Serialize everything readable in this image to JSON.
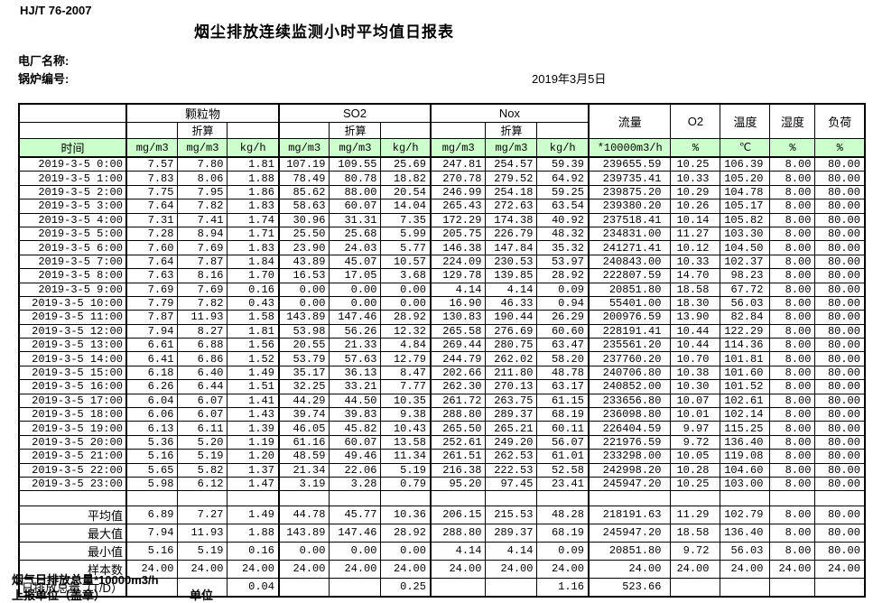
{
  "page": {
    "standard": "HJ/T  76-2007",
    "title": "烟尘排放连续监测小时平均值日报表",
    "plant_label": "电厂名称:",
    "boiler_label": "锅炉编号:",
    "date": "2019年3月5日",
    "footer_note": "烟气日排放总量*10000m3/h",
    "report_unit_label": "上报单位（盖章）",
    "unit_label": "单位"
  },
  "colors": {
    "header_green": "#ccffcc",
    "border": "#000000"
  },
  "table": {
    "header": {
      "time": "时间",
      "pm": "颗粒物",
      "so2": "SO2",
      "nox": "Nox",
      "converted": "折算",
      "flow": "流量",
      "o2": "O2",
      "temperature": "温度",
      "humidity": "湿度",
      "load": "负荷",
      "units": [
        "mg/m3",
        "mg/m3",
        "kg/h",
        "mg/m3",
        "mg/m3",
        "kg/h",
        "mg/m3",
        "mg/m3",
        "kg/h",
        "*10000m3/h",
        "%",
        "℃",
        "%",
        "%"
      ]
    },
    "rows": [
      {
        "time": "2019-3-5 0:00",
        "values": [
          "7.57",
          "7.80",
          "1.81",
          "107.19",
          "109.55",
          "25.69",
          "247.81",
          "254.57",
          "59.39",
          "239655.59",
          "10.25",
          "106.39",
          "8.00",
          "80.00"
        ]
      },
      {
        "time": "2019-3-5 1:00",
        "values": [
          "7.83",
          "8.06",
          "1.88",
          "78.49",
          "80.78",
          "18.82",
          "270.78",
          "279.52",
          "64.92",
          "239735.41",
          "10.33",
          "105.20",
          "8.00",
          "80.00"
        ]
      },
      {
        "time": "2019-3-5 2:00",
        "values": [
          "7.75",
          "7.95",
          "1.86",
          "85.62",
          "88.00",
          "20.54",
          "246.99",
          "254.18",
          "59.25",
          "239875.20",
          "10.29",
          "104.78",
          "8.00",
          "80.00"
        ]
      },
      {
        "time": "2019-3-5 3:00",
        "values": [
          "7.64",
          "7.82",
          "1.83",
          "58.63",
          "60.07",
          "14.04",
          "265.43",
          "272.63",
          "63.54",
          "239380.20",
          "10.26",
          "105.17",
          "8.00",
          "80.00"
        ]
      },
      {
        "time": "2019-3-5 4:00",
        "values": [
          "7.31",
          "7.41",
          "1.74",
          "30.96",
          "31.31",
          "7.35",
          "172.29",
          "174.38",
          "40.92",
          "237518.41",
          "10.14",
          "105.82",
          "8.00",
          "80.00"
        ]
      },
      {
        "time": "2019-3-5 5:00",
        "values": [
          "7.28",
          "8.94",
          "1.71",
          "25.50",
          "25.68",
          "5.99",
          "205.75",
          "226.79",
          "48.32",
          "234831.00",
          "11.27",
          "103.30",
          "8.00",
          "80.00"
        ]
      },
      {
        "time": "2019-3-5 6:00",
        "values": [
          "7.60",
          "7.69",
          "1.83",
          "23.90",
          "24.03",
          "5.77",
          "146.38",
          "147.84",
          "35.32",
          "241271.41",
          "10.12",
          "104.50",
          "8.00",
          "80.00"
        ]
      },
      {
        "time": "2019-3-5 7:00",
        "values": [
          "7.64",
          "7.87",
          "1.84",
          "43.89",
          "45.07",
          "10.57",
          "224.09",
          "230.53",
          "53.97",
          "240843.00",
          "10.33",
          "102.37",
          "8.00",
          "80.00"
        ]
      },
      {
        "time": "2019-3-5 8:00",
        "values": [
          "7.63",
          "8.16",
          "1.70",
          "16.53",
          "17.05",
          "3.68",
          "129.78",
          "139.85",
          "28.92",
          "222807.59",
          "14.70",
          "98.23",
          "8.00",
          "80.00"
        ]
      },
      {
        "time": "2019-3-5 9:00",
        "values": [
          "7.69",
          "7.69",
          "0.16",
          "0.00",
          "0.00",
          "0.00",
          "4.14",
          "4.14",
          "0.09",
          "20851.80",
          "18.58",
          "67.72",
          "8.00",
          "80.00"
        ]
      },
      {
        "time": "2019-3-5 10:00",
        "values": [
          "7.79",
          "7.82",
          "0.43",
          "0.00",
          "0.00",
          "0.00",
          "16.90",
          "46.33",
          "0.94",
          "55401.00",
          "18.30",
          "56.03",
          "8.00",
          "80.00"
        ]
      },
      {
        "time": "2019-3-5 11:00",
        "values": [
          "7.87",
          "11.93",
          "1.58",
          "143.89",
          "147.46",
          "28.92",
          "130.83",
          "190.44",
          "26.29",
          "200976.59",
          "13.90",
          "82.84",
          "8.00",
          "80.00"
        ]
      },
      {
        "time": "2019-3-5 12:00",
        "values": [
          "7.94",
          "8.27",
          "1.81",
          "53.98",
          "56.26",
          "12.32",
          "265.58",
          "276.69",
          "60.60",
          "228191.41",
          "10.44",
          "122.29",
          "8.00",
          "80.00"
        ]
      },
      {
        "time": "2019-3-5 13:00",
        "values": [
          "6.61",
          "6.88",
          "1.56",
          "20.55",
          "21.33",
          "4.84",
          "269.44",
          "280.75",
          "63.47",
          "235561.20",
          "10.44",
          "114.36",
          "8.00",
          "80.00"
        ]
      },
      {
        "time": "2019-3-5 14:00",
        "values": [
          "6.41",
          "6.86",
          "1.52",
          "53.79",
          "57.63",
          "12.79",
          "244.79",
          "262.02",
          "58.20",
          "237760.20",
          "10.70",
          "101.81",
          "8.00",
          "80.00"
        ]
      },
      {
        "time": "2019-3-5 15:00",
        "values": [
          "6.18",
          "6.40",
          "1.49",
          "35.17",
          "36.13",
          "8.47",
          "202.66",
          "211.80",
          "48.78",
          "240706.80",
          "10.38",
          "101.60",
          "8.00",
          "80.00"
        ]
      },
      {
        "time": "2019-3-5 16:00",
        "values": [
          "6.26",
          "6.44",
          "1.51",
          "32.25",
          "33.21",
          "7.77",
          "262.30",
          "270.13",
          "63.17",
          "240852.00",
          "10.30",
          "101.52",
          "8.00",
          "80.00"
        ]
      },
      {
        "time": "2019-3-5 17:00",
        "values": [
          "6.04",
          "6.07",
          "1.41",
          "44.29",
          "44.50",
          "10.35",
          "261.72",
          "263.75",
          "61.15",
          "233656.80",
          "10.07",
          "102.61",
          "8.00",
          "80.00"
        ]
      },
      {
        "time": "2019-3-5 18:00",
        "values": [
          "6.06",
          "6.07",
          "1.43",
          "39.74",
          "39.83",
          "9.38",
          "288.80",
          "289.37",
          "68.19",
          "236098.80",
          "10.01",
          "102.14",
          "8.00",
          "80.00"
        ]
      },
      {
        "time": "2019-3-5 19:00",
        "values": [
          "6.13",
          "6.11",
          "1.39",
          "46.05",
          "45.82",
          "10.43",
          "265.50",
          "265.21",
          "60.11",
          "226404.59",
          "9.97",
          "115.25",
          "8.00",
          "80.00"
        ]
      },
      {
        "time": "2019-3-5 20:00",
        "values": [
          "5.36",
          "5.20",
          "1.19",
          "61.16",
          "60.07",
          "13.58",
          "252.61",
          "249.20",
          "56.07",
          "221976.59",
          "9.72",
          "136.40",
          "8.00",
          "80.00"
        ]
      },
      {
        "time": "2019-3-5 21:00",
        "values": [
          "5.16",
          "5.19",
          "1.20",
          "48.59",
          "49.46",
          "11.34",
          "261.51",
          "262.53",
          "61.01",
          "233298.00",
          "10.05",
          "119.08",
          "8.00",
          "80.00"
        ]
      },
      {
        "time": "2019-3-5 22:00",
        "values": [
          "5.65",
          "5.82",
          "1.37",
          "21.34",
          "22.06",
          "5.19",
          "216.38",
          "222.53",
          "52.58",
          "242998.20",
          "10.28",
          "104.60",
          "8.00",
          "80.00"
        ]
      },
      {
        "time": "2019-3-5 23:00",
        "values": [
          "5.98",
          "6.12",
          "1.47",
          "3.19",
          "3.28",
          "0.79",
          "95.20",
          "97.45",
          "23.41",
          "245947.20",
          "10.25",
          "103.00",
          "8.00",
          "80.00"
        ]
      }
    ],
    "summary": [
      {
        "label": "平均值",
        "values": [
          "6.89",
          "7.27",
          "1.49",
          "44.78",
          "45.77",
          "10.36",
          "206.15",
          "215.53",
          "48.28",
          "218191.63",
          "11.29",
          "102.79",
          "8.00",
          "80.00"
        ]
      },
      {
        "label": "最大值",
        "values": [
          "7.94",
          "11.93",
          "1.88",
          "143.89",
          "147.46",
          "28.92",
          "288.80",
          "289.37",
          "68.19",
          "245947.20",
          "18.58",
          "136.40",
          "8.00",
          "80.00"
        ]
      },
      {
        "label": "最小值",
        "values": [
          "5.16",
          "5.19",
          "0.16",
          "0.00",
          "0.00",
          "0.00",
          "4.14",
          "4.14",
          "0.09",
          "20851.80",
          "9.72",
          "56.03",
          "8.00",
          "80.00"
        ]
      },
      {
        "label": "样本数",
        "values": [
          "24.00",
          "24.00",
          "24.00",
          "24.00",
          "24.00",
          "24.00",
          "24.00",
          "24.00",
          "24.00",
          "24.00",
          "24.00",
          "24.00",
          "24.00",
          "24.00"
        ]
      },
      {
        "label": "日排放总量（T/D）",
        "values": [
          "",
          "",
          "0.04",
          "",
          "",
          "0.25",
          "",
          "",
          "1.16",
          "523.66",
          "",
          "",
          "",
          ""
        ]
      }
    ]
  }
}
